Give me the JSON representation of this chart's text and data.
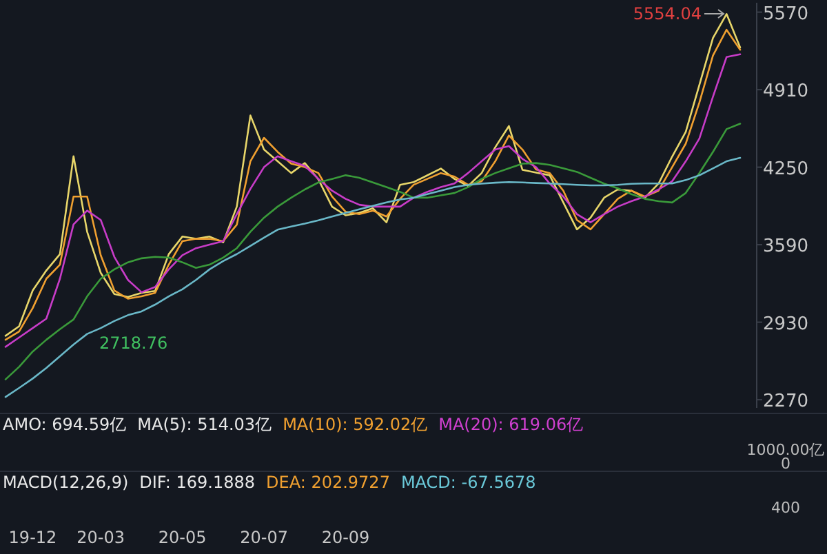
{
  "chart_data": [
    {
      "type": "line",
      "categories": [
        null,
        null,
        "19-12",
        null,
        null,
        null,
        null,
        "20-03",
        null,
        null,
        null,
        null,
        null,
        "20-05",
        null,
        null,
        null,
        null,
        null,
        "20-07",
        null,
        null,
        null,
        null,
        null,
        "20-09",
        null,
        null,
        null,
        null,
        null,
        null,
        null,
        null,
        null,
        null,
        null,
        null,
        null,
        null,
        null,
        null,
        null,
        null,
        null,
        null,
        null,
        null,
        null,
        null,
        null,
        null,
        null,
        null,
        null
      ],
      "series": [
        {
          "color": "#e8d66a",
          "values": [
            2814,
            2895,
            3200,
            3370,
            3509,
            4343,
            3700,
            3350,
            3170,
            3145,
            3180,
            3196,
            3509,
            3659,
            3640,
            3659,
            3610,
            3914,
            4690,
            4400,
            4300,
            4200,
            4285,
            4146,
            3914,
            3840,
            3860,
            3900,
            3780,
            4100,
            4123,
            4180,
            4238,
            4150,
            4090,
            4200,
            4420,
            4600,
            4227,
            4204,
            4181,
            3949,
            3720,
            3820,
            3990,
            4060,
            4050,
            3990,
            4110,
            4340,
            4550,
            4950,
            5350,
            5554,
            5269
          ]
        },
        {
          "color": "#f0a030",
          "values": [
            2780,
            2850,
            3050,
            3300,
            3420,
            4000,
            4000,
            3500,
            3200,
            3130,
            3150,
            3180,
            3420,
            3620,
            3640,
            3640,
            3620,
            3760,
            4300,
            4500,
            4380,
            4280,
            4250,
            4200,
            4000,
            3870,
            3850,
            3880,
            3830,
            3980,
            4100,
            4150,
            4200,
            4170,
            4100,
            4130,
            4300,
            4520,
            4400,
            4230,
            4200,
            4050,
            3800,
            3720,
            3850,
            3980,
            4050,
            4000,
            4050,
            4250,
            4450,
            4800,
            5200,
            5420,
            5250
          ]
        },
        {
          "color": "#c83cc8",
          "values": [
            2720,
            2800,
            2880,
            2960,
            3300,
            3763,
            3880,
            3800,
            3486,
            3290,
            3185,
            3230,
            3380,
            3500,
            3560,
            3590,
            3620,
            3850,
            4065,
            4250,
            4343,
            4300,
            4261,
            4150,
            4050,
            3980,
            3930,
            3914,
            3914,
            3914,
            3990,
            4040,
            4080,
            4111,
            4200,
            4300,
            4400,
            4430,
            4320,
            4250,
            4111,
            4000,
            3850,
            3780,
            3850,
            3914,
            3960,
            4000,
            4060,
            4130,
            4300,
            4493,
            4850,
            5188,
            5211
          ]
        },
        {
          "color": "#3a9a3a",
          "values": [
            2443,
            2550,
            2680,
            2780,
            2870,
            2953,
            3150,
            3300,
            3380,
            3440,
            3474,
            3486,
            3480,
            3440,
            3393,
            3420,
            3480,
            3560,
            3700,
            3820,
            3914,
            3990,
            4060,
            4120,
            4150,
            4181,
            4160,
            4120,
            4080,
            4040,
            3990,
            3990,
            4010,
            4030,
            4080,
            4150,
            4200,
            4240,
            4280,
            4285,
            4270,
            4240,
            4210,
            4160,
            4110,
            4070,
            4020,
            3980,
            3960,
            3949,
            4030,
            4200,
            4380,
            4574,
            4620
          ]
        },
        {
          "color": "#6ab8c8",
          "values": [
            2293,
            2370,
            2450,
            2540,
            2640,
            2740,
            2830,
            2880,
            2940,
            2990,
            3022,
            3080,
            3150,
            3210,
            3290,
            3380,
            3450,
            3510,
            3580,
            3650,
            3718,
            3745,
            3770,
            3798,
            3830,
            3860,
            3891,
            3920,
            3950,
            3975,
            3990,
            4020,
            4050,
            4080,
            4100,
            4110,
            4118,
            4123,
            4120,
            4115,
            4111,
            4105,
            4100,
            4095,
            4095,
            4100,
            4108,
            4111,
            4111,
            4111,
            4140,
            4181,
            4240,
            4300,
            4330
          ]
        }
      ],
      "ylim": [
        2200,
        5650
      ],
      "yticks": [
        2270,
        2930,
        3590,
        4250,
        4910,
        5570
      ],
      "annotations": [
        "5554.04",
        "2718.76"
      ]
    },
    {
      "type": "other",
      "annotations": [
        "AMO: 694.59亿",
        "MA(5): 514.03亿",
        "MA(10): 592.02亿",
        "MA(20): 619.06亿",
        "1000.00亿",
        "0"
      ]
    },
    {
      "type": "other",
      "annotations": [
        "MACD(12,26,9)",
        "DIF: 169.1888",
        "DEA: 202.9727",
        "MACD: -67.5678",
        "400"
      ]
    }
  ]
}
